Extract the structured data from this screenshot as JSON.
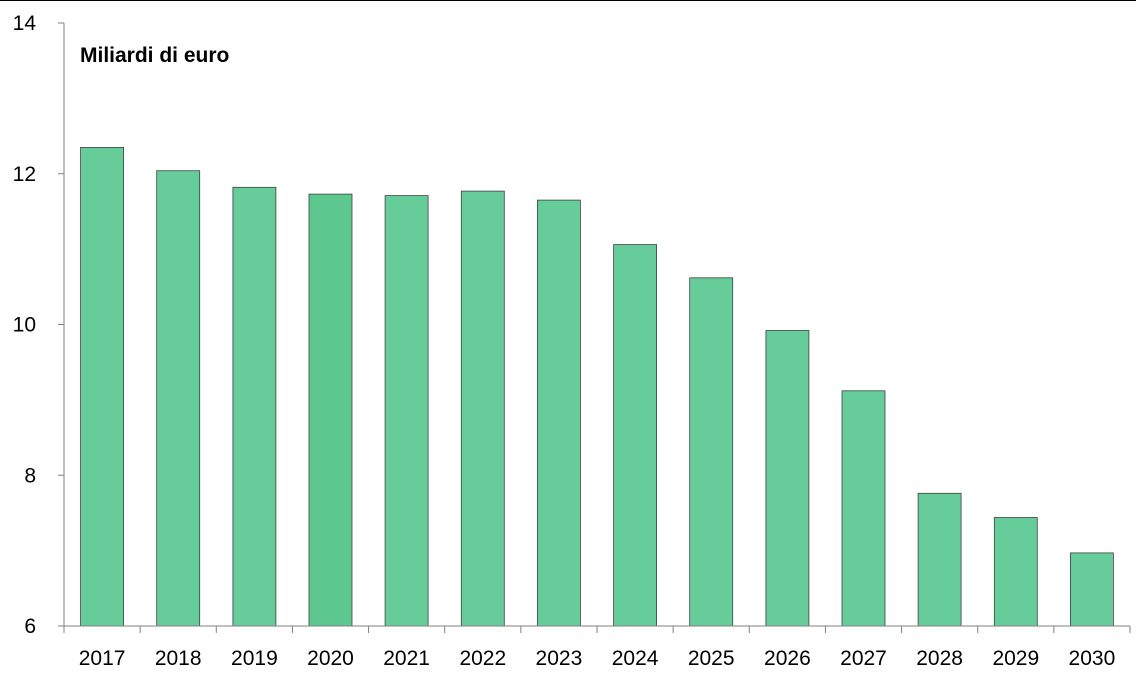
{
  "chart_data": {
    "type": "bar",
    "title": "",
    "unit_label": "Miliardi di euro",
    "xlabel": "",
    "ylabel": "",
    "categories": [
      "2017",
      "2018",
      "2019",
      "2020",
      "2021",
      "2022",
      "2023",
      "2024",
      "2025",
      "2026",
      "2027",
      "2028",
      "2029",
      "2030"
    ],
    "series": [
      {
        "values": [
          12.35,
          12.04,
          11.82,
          11.73,
          11.71,
          11.77,
          11.65,
          11.06,
          10.62,
          9.92,
          9.12,
          7.76,
          7.44,
          6.97
        ],
        "color": "#66cc99",
        "highlight_color": "#5cc78e",
        "highlight_index": 3,
        "border_color": "#404040"
      }
    ],
    "ylim": [
      6,
      14
    ],
    "yticks": [
      6,
      8,
      10,
      12,
      14
    ],
    "grid": false,
    "legend": "none"
  }
}
